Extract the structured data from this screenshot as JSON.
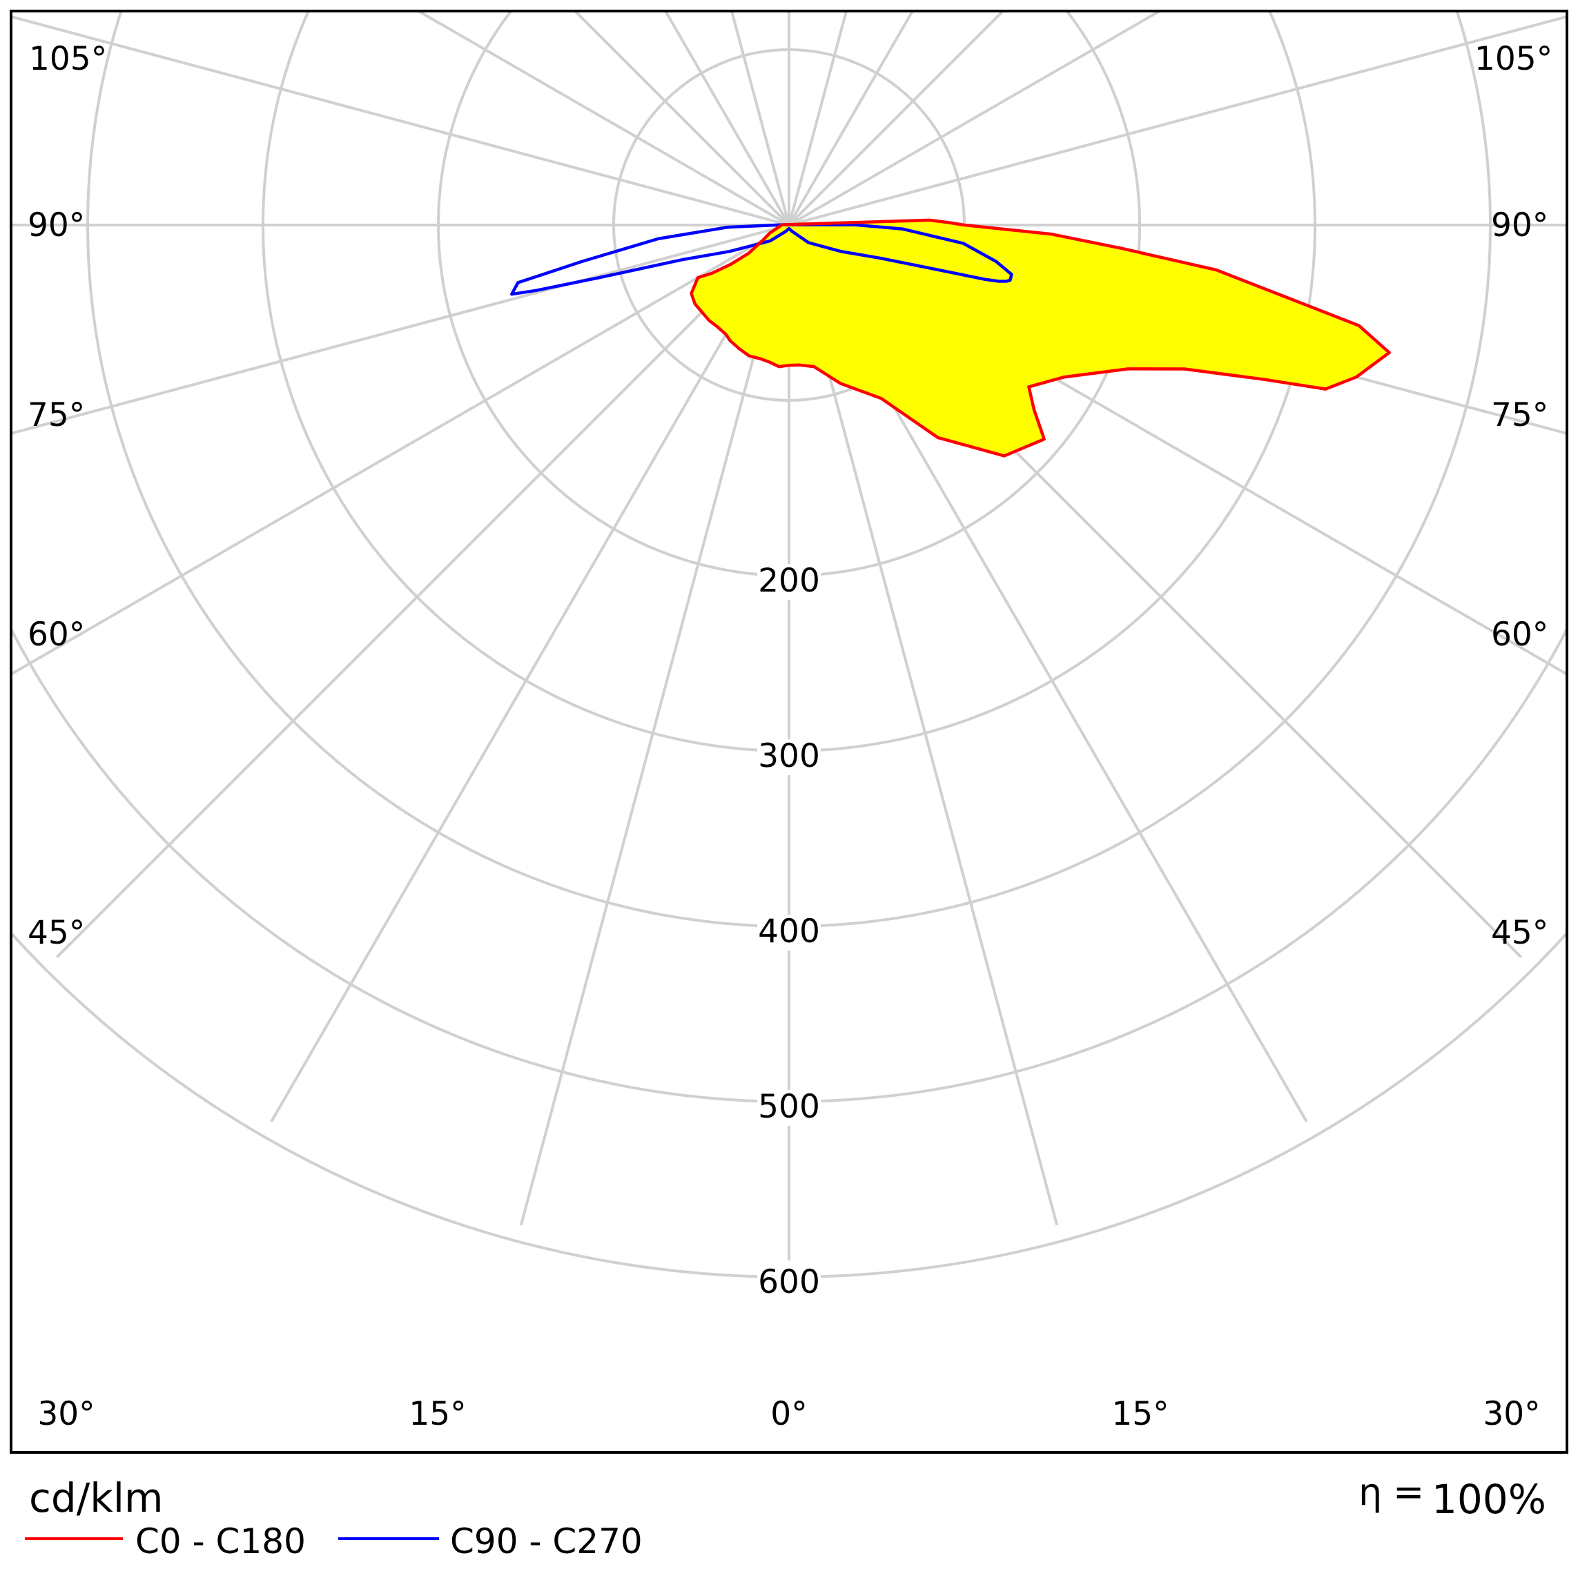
{
  "chart_data": {
    "type": "polar",
    "title": "",
    "unit": "cd/klm",
    "efficiency": {
      "symbol": "η",
      "equals": "=",
      "value": "100%"
    },
    "radial_ticks": [
      100,
      200,
      300,
      400,
      500,
      600
    ],
    "radial_tick_labels": [
      "200",
      "300",
      "400",
      "500",
      "600"
    ],
    "rlim": [
      0,
      700
    ],
    "angle_ticks_deg": [
      0,
      15,
      30,
      45,
      60,
      75,
      90,
      105
    ],
    "angle_labels": {
      "a105": "105°",
      "a90": "90°",
      "a75": "75°",
      "a60": "60°",
      "a45": "45°",
      "a30": "30°",
      "a15": "15°",
      "a0": "0°"
    },
    "grid": true,
    "series": [
      {
        "name": "C0 - C180",
        "legend_label": "C0 - C180",
        "color": "#ff0000",
        "filled": true,
        "fill_color": "#ffff00",
        "points": [
          [
            -92,
            4
          ],
          [
            -73,
            8
          ],
          [
            -67,
            12
          ],
          [
            -60,
            17
          ],
          [
            -55,
            28
          ],
          [
            -56,
            40
          ],
          [
            -58,
            52
          ],
          [
            -60,
            60
          ],
          [
            -55,
            68
          ],
          [
            -50,
            70
          ],
          [
            -40,
            71
          ],
          [
            -35,
            71
          ],
          [
            -30,
            72
          ],
          [
            -27,
            74
          ],
          [
            -22,
            76
          ],
          [
            -17,
            78
          ],
          [
            -12,
            78
          ],
          [
            -8,
            79
          ],
          [
            -4,
            81
          ],
          [
            0,
            80
          ],
          [
            4,
            80
          ],
          [
            10,
            82
          ],
          [
            18,
            95
          ],
          [
            28,
            112
          ],
          [
            35,
            148
          ],
          [
            43,
            180
          ],
          [
            50,
            190
          ],
          [
            53,
            175
          ],
          [
            56,
            165
          ],
          [
            61,
            179
          ],
          [
            67,
            210
          ],
          [
            70,
            240
          ],
          [
            72,
            285
          ],
          [
            73,
            320
          ],
          [
            75,
            335
          ],
          [
            78,
            350
          ],
          [
            80,
            330
          ],
          [
            84,
            245
          ],
          [
            86,
            190
          ],
          [
            88,
            150
          ],
          [
            90,
            100
          ],
          [
            91,
            90
          ],
          [
            92,
            80
          ]
        ]
      },
      {
        "name": "C90 - C270",
        "legend_label": "C90 - C270",
        "color": "#0000ff",
        "filled": false,
        "points": [
          [
            -92,
            4
          ],
          [
            -88,
            35
          ],
          [
            -84,
            75
          ],
          [
            -80,
            120
          ],
          [
            -78,
            158
          ],
          [
            -76,
            163
          ],
          [
            -75.5,
            149
          ],
          [
            -74.5,
            112
          ],
          [
            -72,
            64
          ],
          [
            -66,
            37
          ],
          [
            -50,
            14
          ],
          [
            -26,
            4
          ],
          [
            0,
            2
          ],
          [
            26,
            4
          ],
          [
            48,
            15
          ],
          [
            63,
            33
          ],
          [
            70,
            55
          ],
          [
            73,
            84
          ],
          [
            74,
            103
          ],
          [
            74.5,
            116
          ],
          [
            75,
            124
          ],
          [
            75.5,
            128
          ],
          [
            76,
            130
          ],
          [
            77.5,
            130
          ],
          [
            80,
            120
          ],
          [
            84,
            100
          ],
          [
            88,
            65
          ],
          [
            90.2,
            38
          ],
          [
            92,
            4
          ]
        ]
      }
    ]
  }
}
